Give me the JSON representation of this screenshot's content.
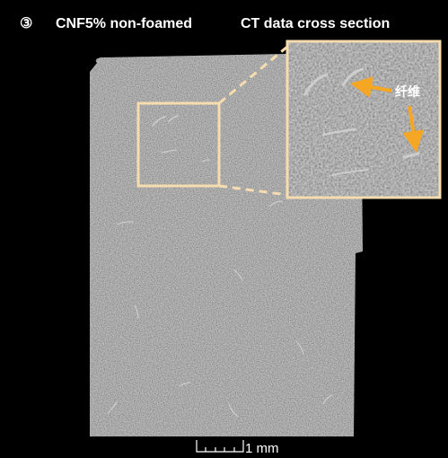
{
  "header": {
    "number": "③",
    "title": "CNF5% non-foamed",
    "subtitle": "CT data cross section"
  },
  "annotation": "纤维",
  "scale_bar": {
    "label": "1 mm"
  }
}
